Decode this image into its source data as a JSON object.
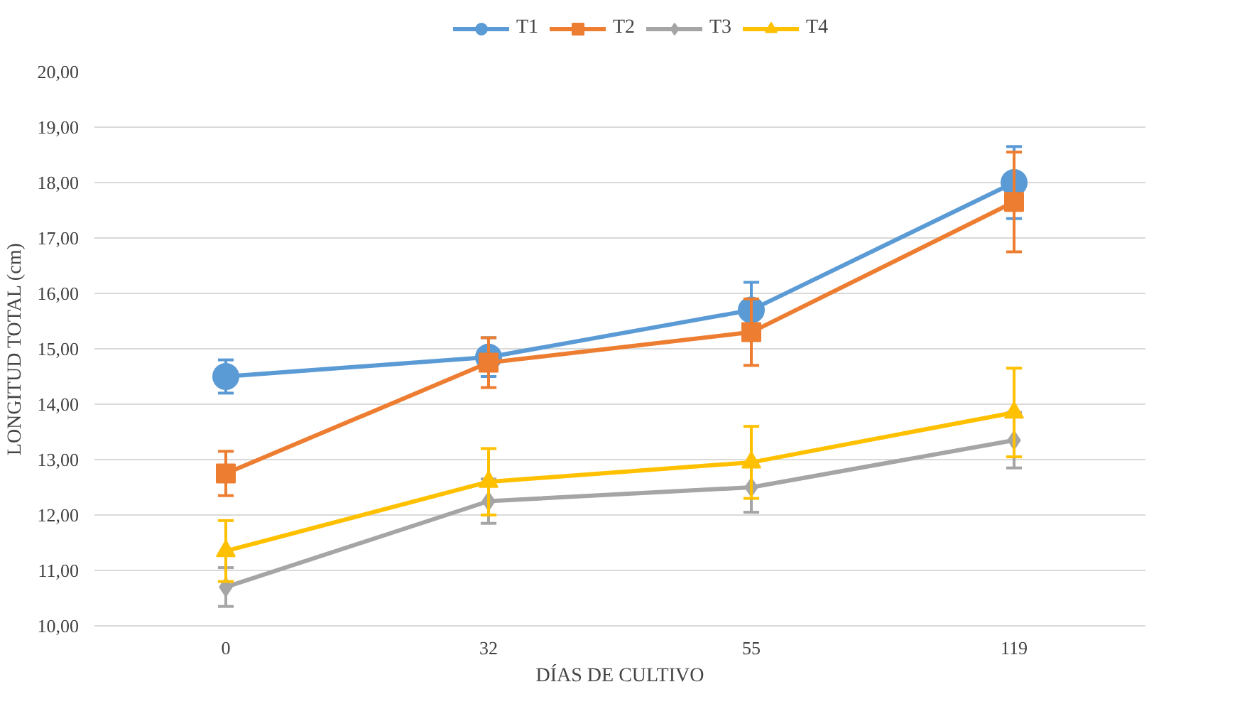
{
  "chart_data": {
    "type": "line",
    "xlabel": "DÍAS DE CULTIVO",
    "ylabel": "LONGITUD TOTAL (cm)",
    "categories": [
      "0",
      "32",
      "55",
      "119"
    ],
    "series": [
      {
        "name": "T1",
        "color": "#5b9bd5",
        "marker": "circle",
        "values": [
          14.5,
          14.85,
          15.7,
          18.0
        ],
        "errors": [
          0.3,
          0.35,
          0.5,
          0.65
        ]
      },
      {
        "name": "T2",
        "color": "#ed7d31",
        "marker": "square",
        "values": [
          12.75,
          14.75,
          15.3,
          17.65
        ],
        "errors": [
          0.4,
          0.45,
          0.6,
          0.9
        ]
      },
      {
        "name": "T3",
        "color": "#a5a5a5",
        "marker": "diamond",
        "values": [
          10.7,
          12.25,
          12.5,
          13.35
        ],
        "errors": [
          0.35,
          0.4,
          0.45,
          0.5
        ]
      },
      {
        "name": "T4",
        "color": "#ffc000",
        "marker": "triangle",
        "values": [
          11.35,
          12.6,
          12.95,
          13.85
        ],
        "errors": [
          0.55,
          0.6,
          0.65,
          0.8
        ]
      }
    ],
    "ylim": [
      10,
      20
    ],
    "yticks": [
      {
        "value": 10,
        "label": "10,00"
      },
      {
        "value": 11,
        "label": "11,00"
      },
      {
        "value": 12,
        "label": "12,00"
      },
      {
        "value": 13,
        "label": "13,00"
      },
      {
        "value": 14,
        "label": "14,00"
      },
      {
        "value": 15,
        "label": "15,00"
      },
      {
        "value": 16,
        "label": "16,00"
      },
      {
        "value": 17,
        "label": "17,00"
      },
      {
        "value": 18,
        "label": "18,00"
      },
      {
        "value": 19,
        "label": "19,00"
      },
      {
        "value": 20,
        "label": "20,00"
      }
    ],
    "grid": "y",
    "legend": "top",
    "line_style": "solid"
  }
}
